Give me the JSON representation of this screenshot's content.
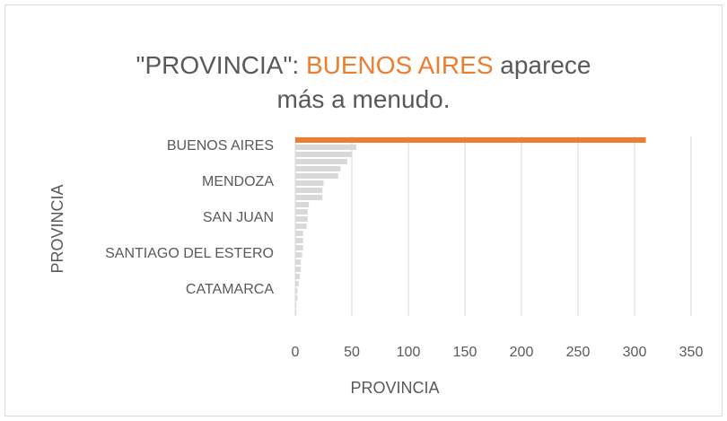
{
  "chart_data": {
    "type": "barh",
    "title_lines": [
      [
        {
          "text": "\"PROVINCIA\": ",
          "color": "#595959"
        },
        {
          "text": "BUENOS AIRES",
          "color": "#ed7d31"
        },
        {
          "text": " aparece",
          "color": "#595959"
        }
      ],
      [
        {
          "text": "más a menudo.",
          "color": "#595959"
        }
      ]
    ],
    "xlabel": "PROVINCIA",
    "ylabel": "PROVINCIA",
    "categories": [
      "BUENOS AIRES",
      null,
      null,
      null,
      null,
      "MENDOZA",
      null,
      null,
      null,
      null,
      "SAN JUAN",
      null,
      null,
      null,
      null,
      "SANTIAGO DEL ESTERO",
      null,
      null,
      null,
      null,
      "CATAMARCA",
      null,
      null,
      null,
      null
    ],
    "values": [
      310,
      54,
      50,
      46,
      40,
      38,
      25,
      24,
      24,
      12,
      11,
      11,
      10,
      7,
      7,
      7,
      6,
      5,
      5,
      4,
      3,
      2,
      2,
      1,
      1
    ],
    "colors": [
      "#ed7d31",
      "#d9d9d9",
      "#d9d9d9",
      "#d9d9d9",
      "#d9d9d9",
      "#d9d9d9",
      "#d9d9d9",
      "#d9d9d9",
      "#d9d9d9",
      "#d9d9d9",
      "#d9d9d9",
      "#d9d9d9",
      "#d9d9d9",
      "#d9d9d9",
      "#d9d9d9",
      "#d9d9d9",
      "#d9d9d9",
      "#d9d9d9",
      "#d9d9d9",
      "#d9d9d9",
      "#d9d9d9",
      "#d9d9d9",
      "#d9d9d9",
      "#d9d9d9",
      "#d9d9d9"
    ],
    "xlim": [
      0,
      350
    ],
    "xticks": [
      0,
      50,
      100,
      150,
      200,
      250,
      300,
      350
    ],
    "grid": true
  }
}
